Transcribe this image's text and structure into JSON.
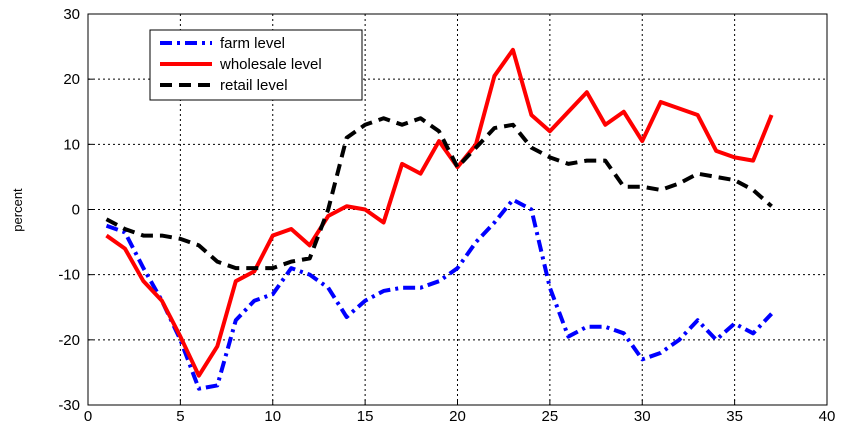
{
  "chart_data": {
    "type": "line",
    "ylabel": "percent",
    "x": [
      1,
      2,
      3,
      4,
      5,
      6,
      7,
      8,
      9,
      10,
      11,
      12,
      13,
      14,
      15,
      16,
      17,
      18,
      19,
      20,
      21,
      22,
      23,
      24,
      25,
      26,
      27,
      28,
      29,
      30,
      31,
      32,
      33,
      34,
      35,
      36,
      37
    ],
    "series": [
      {
        "name": "farm level",
        "color": "#0000ff",
        "linestyle": "dashdot",
        "values": [
          -2.5,
          -3.5,
          -9,
          -14,
          -20,
          -27.5,
          -27,
          -17,
          -14,
          -13,
          -9,
          -10,
          -12,
          -16.5,
          -14,
          -12.5,
          -12,
          -12,
          -11,
          -9,
          -5,
          -2,
          1.5,
          0,
          -12,
          -19.5,
          -18,
          -18,
          -19,
          -23,
          -22,
          -20,
          -17,
          -20,
          -17.5,
          -19,
          -16
        ]
      },
      {
        "name": "wholesale level",
        "color": "#ff0000",
        "linestyle": "solid",
        "values": [
          -4,
          -6,
          -11,
          -14,
          -19.5,
          -25.5,
          -21,
          -11,
          -9.5,
          -4,
          -3,
          -5.5,
          -1,
          0.5,
          0,
          -2,
          7,
          5.5,
          10.5,
          6.5,
          10,
          20.5,
          24.5,
          14.5,
          12,
          15,
          18,
          13,
          15,
          10.5,
          16.5,
          15.5,
          14.5,
          9,
          8,
          7.5,
          14.5
        ]
      },
      {
        "name": "retail level",
        "color": "#000000",
        "linestyle": "dashed",
        "values": [
          -1.5,
          -3,
          -4,
          -4,
          -4.5,
          -5.5,
          -8,
          -9,
          -9,
          -9,
          -8,
          -7.5,
          0,
          11,
          13,
          14,
          13,
          14,
          12,
          6.5,
          9.5,
          12.5,
          13,
          9.5,
          8,
          7,
          7.5,
          7.5,
          3.5,
          3.5,
          3,
          4,
          5.5,
          5,
          4.5,
          3,
          0.5
        ]
      }
    ],
    "xlim": [
      0,
      40
    ],
    "xticks": [
      0,
      5,
      10,
      15,
      20,
      25,
      30,
      35,
      40
    ],
    "ylim": [
      -30,
      30
    ],
    "yticks": [
      -30,
      -20,
      -10,
      0,
      10,
      20,
      30
    ],
    "grid": true,
    "legend": "upper left"
  }
}
